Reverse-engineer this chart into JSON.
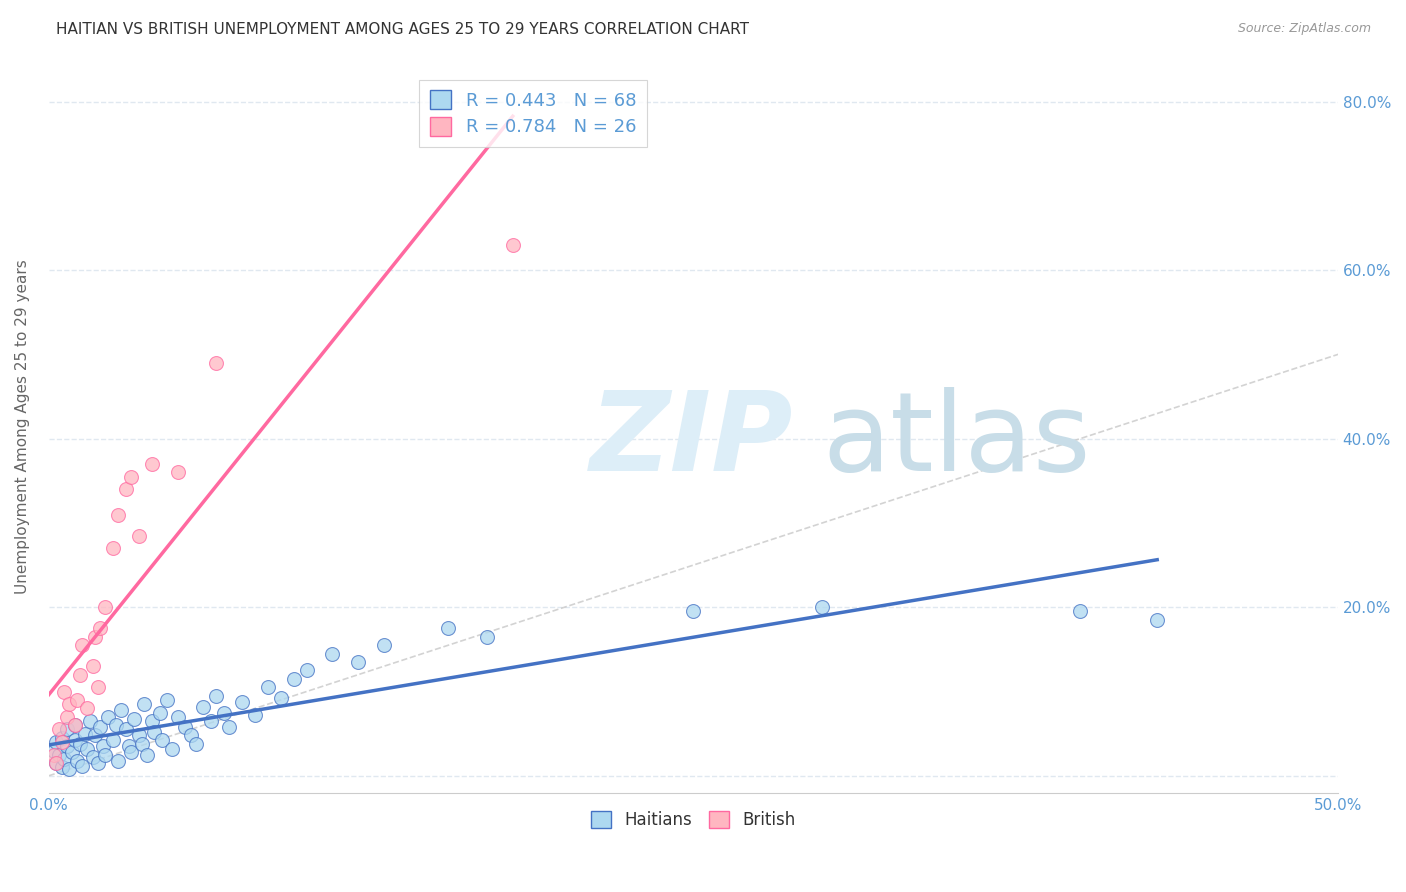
{
  "title": "HAITIAN VS BRITISH UNEMPLOYMENT AMONG AGES 25 TO 29 YEARS CORRELATION CHART",
  "source": "Source: ZipAtlas.com",
  "ylabel": "Unemployment Among Ages 25 to 29 years",
  "xlim": [
    0.0,
    0.5
  ],
  "ylim": [
    -0.02,
    0.85
  ],
  "xticks": [
    0.0,
    0.1,
    0.2,
    0.3,
    0.4,
    0.5
  ],
  "xticklabels": [
    "0.0%",
    "",
    "",
    "",
    "",
    "50.0%"
  ],
  "yticks": [
    0.0,
    0.2,
    0.4,
    0.6,
    0.8
  ],
  "yticklabels_right": [
    "",
    "20.0%",
    "40.0%",
    "60.0%",
    "80.0%"
  ],
  "r_haitians": 0.443,
  "n_haitians": 68,
  "r_british": 0.784,
  "n_british": 26,
  "color_haitians": "#ADD8F0",
  "color_british": "#FFB6C1",
  "line_color_haitians": "#4472C4",
  "line_color_british": "#FF69A0",
  "diagonal_color": "#C8C8C8",
  "background_color": "#ffffff",
  "grid_color": "#E0E8F0",
  "haitians_x": [
    0.002,
    0.003,
    0.003,
    0.004,
    0.005,
    0.005,
    0.006,
    0.007,
    0.007,
    0.008,
    0.009,
    0.01,
    0.01,
    0.011,
    0.012,
    0.013,
    0.014,
    0.015,
    0.016,
    0.017,
    0.018,
    0.019,
    0.02,
    0.021,
    0.022,
    0.023,
    0.025,
    0.026,
    0.027,
    0.028,
    0.03,
    0.031,
    0.032,
    0.033,
    0.035,
    0.036,
    0.037,
    0.038,
    0.04,
    0.041,
    0.043,
    0.044,
    0.046,
    0.048,
    0.05,
    0.053,
    0.055,
    0.057,
    0.06,
    0.063,
    0.065,
    0.068,
    0.07,
    0.075,
    0.08,
    0.085,
    0.09,
    0.095,
    0.1,
    0.11,
    0.12,
    0.13,
    0.155,
    0.17,
    0.25,
    0.3,
    0.4,
    0.43
  ],
  "haitians_y": [
    0.03,
    0.015,
    0.04,
    0.025,
    0.01,
    0.045,
    0.02,
    0.035,
    0.055,
    0.008,
    0.028,
    0.042,
    0.06,
    0.018,
    0.038,
    0.012,
    0.05,
    0.032,
    0.065,
    0.022,
    0.048,
    0.015,
    0.058,
    0.035,
    0.025,
    0.07,
    0.042,
    0.06,
    0.018,
    0.078,
    0.055,
    0.035,
    0.028,
    0.068,
    0.048,
    0.038,
    0.085,
    0.025,
    0.065,
    0.052,
    0.075,
    0.042,
    0.09,
    0.032,
    0.07,
    0.058,
    0.048,
    0.038,
    0.082,
    0.065,
    0.095,
    0.075,
    0.058,
    0.088,
    0.072,
    0.105,
    0.092,
    0.115,
    0.125,
    0.145,
    0.135,
    0.155,
    0.175,
    0.165,
    0.195,
    0.2,
    0.195,
    0.185
  ],
  "british_x": [
    0.002,
    0.003,
    0.004,
    0.005,
    0.006,
    0.007,
    0.008,
    0.01,
    0.011,
    0.012,
    0.013,
    0.015,
    0.017,
    0.018,
    0.019,
    0.02,
    0.022,
    0.025,
    0.027,
    0.03,
    0.032,
    0.035,
    0.04,
    0.05,
    0.065,
    0.18
  ],
  "british_y": [
    0.025,
    0.015,
    0.055,
    0.04,
    0.1,
    0.07,
    0.085,
    0.06,
    0.09,
    0.12,
    0.155,
    0.08,
    0.13,
    0.165,
    0.105,
    0.175,
    0.2,
    0.27,
    0.31,
    0.34,
    0.355,
    0.285,
    0.37,
    0.36,
    0.49,
    0.63
  ]
}
